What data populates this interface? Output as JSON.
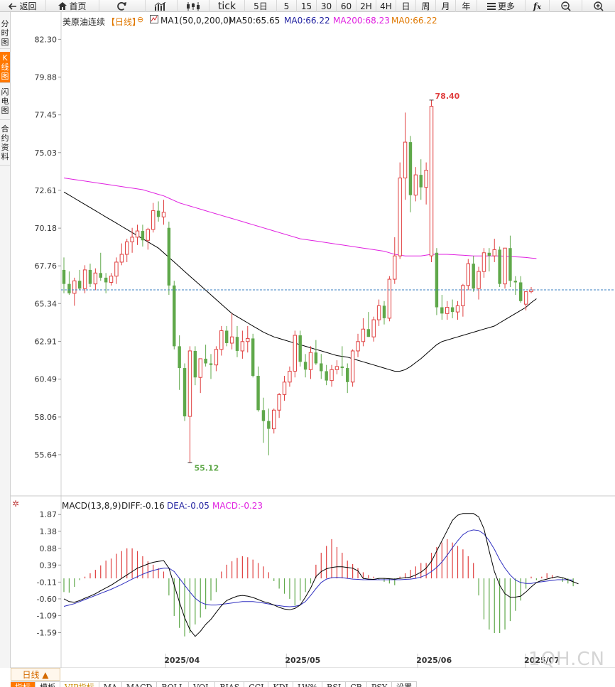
{
  "toolbar": {
    "back_label": "返回",
    "home_label": "首页",
    "tick_label": "tick",
    "periods": [
      "5日",
      "5",
      "15",
      "30",
      "60",
      "2H",
      "4H",
      "日",
      "周",
      "月",
      "年"
    ],
    "more_label": "更多"
  },
  "sidetabs": [
    {
      "label": "分时图",
      "active": false
    },
    {
      "label": "K线图",
      "active": true
    },
    {
      "label": "闪电图",
      "active": false
    },
    {
      "label": "合约资料",
      "active": false
    }
  ],
  "info": {
    "symbol": "美原油连续",
    "period": "【日线】",
    "ma_params": "MA1(50,0,200,0)",
    "ma50": "MA50:65.65",
    "ma0a": "MA0:66.22",
    "ma200": "MA200:68.23",
    "ma0b": "MA0:66.22"
  },
  "macd_info": {
    "name": "MACD(13,8,9)",
    "diff": "DIFF:-0.16",
    "dea": "DEA:-0.05",
    "macd": "MACD:-0.23"
  },
  "price_axis": [
    "82.30",
    "79.88",
    "77.45",
    "75.03",
    "72.61",
    "70.18",
    "67.76",
    "65.34",
    "62.91",
    "60.49",
    "58.06",
    "55.64"
  ],
  "macd_axis": [
    "1.87",
    "1.38",
    "0.88",
    "0.39",
    "-0.11",
    "-0.60",
    "-1.09",
    "-1.59"
  ],
  "date_labels": [
    "2025/04",
    "2025/05",
    "2025/06",
    "2025/07"
  ],
  "annotations": {
    "high": "78.40",
    "low": "55.12"
  },
  "colors": {
    "up": "#e04040",
    "down": "#5fa84a",
    "ma50": "#000000",
    "ma200": "#e020e0",
    "diff": "#000000",
    "dea": "#3030c0",
    "current": "#3a7fc0",
    "accent": "#ff7800"
  },
  "bottom": {
    "period_toggle": "日线 ▲",
    "tabs": [
      {
        "label": "指标",
        "active": true
      },
      {
        "label": "模板",
        "active": false
      },
      {
        "label": "VIP指标",
        "vip": true
      },
      {
        "label": "MA"
      },
      {
        "label": "MACD"
      },
      {
        "label": "BOLL"
      },
      {
        "label": "VOL"
      },
      {
        "label": "BIAS"
      },
      {
        "label": "CCI"
      },
      {
        "label": "KDJ"
      },
      {
        "label": "LW%"
      },
      {
        "label": "RSI"
      },
      {
        "label": "CR"
      },
      {
        "label": "PSY"
      },
      {
        "label": "设置"
      }
    ]
  },
  "watermark": "1QH.CN",
  "chart_data": {
    "type": "candlestick",
    "price_ylim": [
      54.5,
      83.0
    ],
    "current_price": 66.22,
    "candles": [
      {
        "o": 67.5,
        "h": 68.3,
        "l": 66.0,
        "c": 66.6
      },
      {
        "o": 66.6,
        "h": 67.4,
        "l": 65.9,
        "c": 66.0
      },
      {
        "o": 66.0,
        "h": 67.0,
        "l": 65.2,
        "c": 66.8
      },
      {
        "o": 66.8,
        "h": 67.5,
        "l": 66.2,
        "c": 66.3
      },
      {
        "o": 66.3,
        "h": 67.8,
        "l": 66.0,
        "c": 67.5
      },
      {
        "o": 67.5,
        "h": 67.9,
        "l": 66.4,
        "c": 66.6
      },
      {
        "o": 66.6,
        "h": 67.6,
        "l": 66.2,
        "c": 67.3
      },
      {
        "o": 67.3,
        "h": 68.6,
        "l": 66.8,
        "c": 67.0
      },
      {
        "o": 67.0,
        "h": 67.3,
        "l": 66.0,
        "c": 66.7
      },
      {
        "o": 66.7,
        "h": 67.3,
        "l": 66.5,
        "c": 67.1
      },
      {
        "o": 67.1,
        "h": 68.3,
        "l": 66.6,
        "c": 68.0
      },
      {
        "o": 68.0,
        "h": 69.2,
        "l": 67.8,
        "c": 68.5
      },
      {
        "o": 68.5,
        "h": 69.5,
        "l": 68.0,
        "c": 69.3
      },
      {
        "o": 69.3,
        "h": 70.2,
        "l": 68.6,
        "c": 69.6
      },
      {
        "o": 69.6,
        "h": 70.4,
        "l": 69.1,
        "c": 70.0
      },
      {
        "o": 70.0,
        "h": 70.4,
        "l": 69.0,
        "c": 69.4
      },
      {
        "o": 69.4,
        "h": 70.2,
        "l": 68.8,
        "c": 70.1
      },
      {
        "o": 70.1,
        "h": 71.8,
        "l": 69.9,
        "c": 71.3
      },
      {
        "o": 71.3,
        "h": 71.9,
        "l": 70.6,
        "c": 70.9
      },
      {
        "o": 70.9,
        "h": 72.0,
        "l": 70.4,
        "c": 71.2
      },
      {
        "o": 70.2,
        "h": 70.6,
        "l": 65.9,
        "c": 66.5
      },
      {
        "o": 66.5,
        "h": 66.8,
        "l": 62.4,
        "c": 62.6
      },
      {
        "o": 62.6,
        "h": 63.3,
        "l": 59.8,
        "c": 61.2
      },
      {
        "o": 61.2,
        "h": 61.5,
        "l": 57.8,
        "c": 58.1
      },
      {
        "o": 58.1,
        "h": 62.6,
        "l": 55.12,
        "c": 62.3
      },
      {
        "o": 62.3,
        "h": 62.6,
        "l": 60.1,
        "c": 60.6
      },
      {
        "o": 60.6,
        "h": 61.8,
        "l": 59.6,
        "c": 61.8
      },
      {
        "o": 61.8,
        "h": 62.7,
        "l": 61.3,
        "c": 61.5
      },
      {
        "o": 61.5,
        "h": 62.1,
        "l": 60.5,
        "c": 61.4
      },
      {
        "o": 61.4,
        "h": 62.6,
        "l": 61.0,
        "c": 62.4
      },
      {
        "o": 62.4,
        "h": 63.9,
        "l": 62.0,
        "c": 63.6
      },
      {
        "o": 63.6,
        "h": 63.9,
        "l": 62.6,
        "c": 62.8
      },
      {
        "o": 62.8,
        "h": 64.7,
        "l": 62.4,
        "c": 63.2
      },
      {
        "o": 63.2,
        "h": 63.9,
        "l": 61.9,
        "c": 62.3
      },
      {
        "o": 62.3,
        "h": 63.6,
        "l": 61.8,
        "c": 62.9
      },
      {
        "o": 62.9,
        "h": 63.9,
        "l": 62.2,
        "c": 63.1
      },
      {
        "o": 63.1,
        "h": 63.4,
        "l": 60.6,
        "c": 60.7
      },
      {
        "o": 60.7,
        "h": 61.3,
        "l": 58.4,
        "c": 58.5
      },
      {
        "o": 58.5,
        "h": 59.3,
        "l": 56.4,
        "c": 57.8
      },
      {
        "o": 57.8,
        "h": 58.6,
        "l": 55.6,
        "c": 57.3
      },
      {
        "o": 57.3,
        "h": 58.6,
        "l": 57.0,
        "c": 58.5
      },
      {
        "o": 58.5,
        "h": 59.6,
        "l": 58.0,
        "c": 59.5
      },
      {
        "o": 59.5,
        "h": 60.7,
        "l": 59.1,
        "c": 60.3
      },
      {
        "o": 60.3,
        "h": 61.3,
        "l": 60.0,
        "c": 61.0
      },
      {
        "o": 61.0,
        "h": 63.6,
        "l": 60.6,
        "c": 63.3
      },
      {
        "o": 63.3,
        "h": 63.6,
        "l": 61.3,
        "c": 61.6
      },
      {
        "o": 61.6,
        "h": 62.1,
        "l": 60.6,
        "c": 61.1
      },
      {
        "o": 61.1,
        "h": 62.6,
        "l": 60.5,
        "c": 62.2
      },
      {
        "o": 62.2,
        "h": 63.0,
        "l": 61.4,
        "c": 61.5
      },
      {
        "o": 61.5,
        "h": 62.1,
        "l": 60.5,
        "c": 61.0
      },
      {
        "o": 61.0,
        "h": 61.4,
        "l": 60.1,
        "c": 60.4
      },
      {
        "o": 60.4,
        "h": 61.4,
        "l": 60.0,
        "c": 61.1
      },
      {
        "o": 61.1,
        "h": 61.7,
        "l": 60.8,
        "c": 61.3
      },
      {
        "o": 61.3,
        "h": 62.6,
        "l": 60.7,
        "c": 61.2
      },
      {
        "o": 61.2,
        "h": 61.5,
        "l": 59.6,
        "c": 60.3
      },
      {
        "o": 60.3,
        "h": 62.4,
        "l": 60.0,
        "c": 62.3
      },
      {
        "o": 62.3,
        "h": 63.4,
        "l": 61.9,
        "c": 62.9
      },
      {
        "o": 62.9,
        "h": 64.4,
        "l": 62.6,
        "c": 63.7
      },
      {
        "o": 63.7,
        "h": 64.8,
        "l": 63.2,
        "c": 63.2
      },
      {
        "o": 63.2,
        "h": 64.5,
        "l": 62.9,
        "c": 64.3
      },
      {
        "o": 64.3,
        "h": 65.6,
        "l": 63.9,
        "c": 65.2
      },
      {
        "o": 65.2,
        "h": 65.5,
        "l": 64.0,
        "c": 64.4
      },
      {
        "o": 64.4,
        "h": 67.1,
        "l": 64.2,
        "c": 66.9
      },
      {
        "o": 66.9,
        "h": 69.6,
        "l": 66.6,
        "c": 68.4
      },
      {
        "o": 68.4,
        "h": 74.4,
        "l": 68.2,
        "c": 73.4
      },
      {
        "o": 73.4,
        "h": 77.6,
        "l": 72.0,
        "c": 75.7
      },
      {
        "o": 75.7,
        "h": 76.1,
        "l": 71.2,
        "c": 72.3
      },
      {
        "o": 72.3,
        "h": 74.1,
        "l": 71.9,
        "c": 73.6
      },
      {
        "o": 73.6,
        "h": 74.6,
        "l": 72.0,
        "c": 72.8
      },
      {
        "o": 72.8,
        "h": 74.4,
        "l": 71.7,
        "c": 73.9
      },
      {
        "o": 68.4,
        "h": 78.4,
        "l": 68.0,
        "c": 78.0
      },
      {
        "o": 68.6,
        "h": 68.9,
        "l": 64.6,
        "c": 65.1
      },
      {
        "o": 65.1,
        "h": 65.9,
        "l": 64.3,
        "c": 64.7
      },
      {
        "o": 64.7,
        "h": 65.5,
        "l": 64.3,
        "c": 65.1
      },
      {
        "o": 65.1,
        "h": 65.6,
        "l": 64.4,
        "c": 64.8
      },
      {
        "o": 64.8,
        "h": 65.5,
        "l": 64.3,
        "c": 65.2
      },
      {
        "o": 65.2,
        "h": 66.6,
        "l": 64.5,
        "c": 66.5
      },
      {
        "o": 66.5,
        "h": 68.2,
        "l": 66.2,
        "c": 67.9
      },
      {
        "o": 67.9,
        "h": 68.4,
        "l": 66.1,
        "c": 66.3
      },
      {
        "o": 66.3,
        "h": 67.7,
        "l": 65.6,
        "c": 67.4
      },
      {
        "o": 67.4,
        "h": 68.9,
        "l": 67.0,
        "c": 68.6
      },
      {
        "o": 68.6,
        "h": 68.9,
        "l": 67.4,
        "c": 68.4
      },
      {
        "o": 68.4,
        "h": 69.5,
        "l": 68.0,
        "c": 68.8
      },
      {
        "o": 68.8,
        "h": 69.0,
        "l": 66.4,
        "c": 66.6
      },
      {
        "o": 66.6,
        "h": 68.9,
        "l": 66.3,
        "c": 68.9
      },
      {
        "o": 68.9,
        "h": 69.7,
        "l": 66.4,
        "c": 66.8
      },
      {
        "o": 66.8,
        "h": 67.1,
        "l": 65.9,
        "c": 66.7
      },
      {
        "o": 66.7,
        "h": 67.1,
        "l": 65.4,
        "c": 65.5
      },
      {
        "o": 65.3,
        "h": 66.1,
        "l": 64.9,
        "c": 66.1
      },
      {
        "o": 66.1,
        "h": 66.4,
        "l": 66.0,
        "c": 66.22
      }
    ],
    "ma50": [
      72.5,
      72.3,
      72.1,
      71.9,
      71.7,
      71.5,
      71.3,
      71.1,
      70.9,
      70.7,
      70.5,
      70.3,
      70.1,
      69.9,
      69.7,
      69.5,
      69.3,
      69.1,
      68.9,
      68.6,
      68.3,
      68.0,
      67.7,
      67.4,
      67.1,
      66.8,
      66.5,
      66.2,
      65.9,
      65.6,
      65.3,
      65.0,
      64.7,
      64.5,
      64.3,
      64.1,
      63.9,
      63.7,
      63.5,
      63.35,
      63.2,
      63.1,
      63.0,
      62.9,
      62.8,
      62.7,
      62.6,
      62.5,
      62.4,
      62.3,
      62.2,
      62.1,
      62.0,
      61.95,
      61.9,
      61.8,
      61.7,
      61.6,
      61.5,
      61.4,
      61.3,
      61.2,
      61.1,
      61.0,
      61.0,
      61.1,
      61.3,
      61.55,
      61.8,
      62.1,
      62.4,
      62.7,
      62.9,
      63.0,
      63.1,
      63.2,
      63.3,
      63.4,
      63.5,
      63.6,
      63.7,
      63.8,
      63.9,
      64.1,
      64.3,
      64.5,
      64.7,
      64.9,
      65.1,
      65.4,
      65.65
    ],
    "ma200": [
      73.4,
      73.35,
      73.3,
      73.25,
      73.2,
      73.15,
      73.1,
      73.05,
      73.0,
      72.95,
      72.9,
      72.85,
      72.8,
      72.75,
      72.7,
      72.65,
      72.55,
      72.45,
      72.35,
      72.25,
      72.1,
      71.95,
      71.8,
      71.7,
      71.6,
      71.5,
      71.4,
      71.3,
      71.2,
      71.1,
      71.0,
      70.9,
      70.8,
      70.7,
      70.6,
      70.5,
      70.4,
      70.3,
      70.2,
      70.1,
      70.0,
      69.9,
      69.8,
      69.7,
      69.6,
      69.5,
      69.45,
      69.4,
      69.35,
      69.3,
      69.25,
      69.2,
      69.15,
      69.1,
      69.05,
      69.0,
      68.95,
      68.9,
      68.85,
      68.8,
      68.75,
      68.7,
      68.6,
      68.5,
      68.45,
      68.4,
      68.4,
      68.4,
      68.4,
      68.45,
      68.5,
      68.5,
      68.5,
      68.5,
      68.48,
      68.46,
      68.44,
      68.42,
      68.4,
      68.4,
      68.4,
      68.4,
      68.4,
      68.4,
      68.38,
      68.36,
      68.34,
      68.32,
      68.3,
      68.26,
      68.23
    ],
    "macd_ylim": [
      -2.1,
      2.0
    ],
    "macd_hist": [
      -0.4,
      -0.42,
      -0.25,
      -0.05,
      0.05,
      0.15,
      0.25,
      0.38,
      0.52,
      0.58,
      0.72,
      0.8,
      0.88,
      0.88,
      0.8,
      0.65,
      0.5,
      0.4,
      0.3,
      0.2,
      -0.5,
      -1.1,
      -1.45,
      -1.7,
      -1.6,
      -1.35,
      -1.15,
      -0.9,
      -0.65,
      -0.4,
      0.2,
      0.4,
      0.5,
      0.6,
      0.65,
      0.62,
      0.55,
      0.45,
      0.35,
      0.18,
      -0.08,
      -0.3,
      -0.45,
      -0.6,
      -0.8,
      -0.65,
      -0.4,
      -0.15,
      0.4,
      0.75,
      0.95,
      1.15,
      0.92,
      0.75,
      0.52,
      0.42,
      0.3,
      0.18,
      0.1,
      0.05,
      -0.05,
      -0.1,
      -0.15,
      -0.2,
      0.05,
      0.15,
      0.25,
      0.35,
      0.45,
      0.45,
      0.75,
      0.92,
      1.05,
      1.15,
      1.05,
      0.95,
      0.85,
      0.65,
      0.45,
      -0.5,
      -1.2,
      -1.5,
      -1.6,
      -1.6,
      -1.5,
      -1.25,
      -0.95,
      -0.65,
      -0.3,
      0.05,
      -0.05,
      0.05,
      0.15,
      0.1,
      0.0,
      -0.1,
      -0.15,
      -0.23
    ],
    "diff": [
      -0.6,
      -0.68,
      -0.7,
      -0.65,
      -0.58,
      -0.52,
      -0.45,
      -0.36,
      -0.28,
      -0.2,
      -0.1,
      0.0,
      0.1,
      0.2,
      0.3,
      0.36,
      0.42,
      0.47,
      0.5,
      0.52,
      0.3,
      -0.2,
      -0.7,
      -1.15,
      -1.5,
      -1.7,
      -1.55,
      -1.35,
      -1.2,
      -1.0,
      -0.8,
      -0.65,
      -0.58,
      -0.52,
      -0.5,
      -0.52,
      -0.56,
      -0.62,
      -0.68,
      -0.72,
      -0.78,
      -0.85,
      -0.9,
      -0.92,
      -0.88,
      -0.78,
      -0.55,
      -0.28,
      0.05,
      0.2,
      0.28,
      0.32,
      0.34,
      0.34,
      0.32,
      0.3,
      0.22,
      0.0,
      -0.02,
      -0.03,
      0.0,
      0.0,
      -0.01,
      -0.02,
      0.0,
      0.02,
      0.04,
      0.1,
      0.18,
      0.3,
      0.5,
      0.8,
      1.1,
      1.4,
      1.7,
      1.85,
      1.9,
      1.9,
      1.9,
      1.8,
      1.45,
      0.8,
      0.2,
      -0.2,
      -0.45,
      -0.55,
      -0.55,
      -0.52,
      -0.4,
      -0.25,
      -0.12,
      -0.06,
      -0.02,
      0.02,
      0.05,
      0.02,
      -0.04,
      -0.1,
      -0.16
    ],
    "dea": [
      -0.82,
      -0.78,
      -0.74,
      -0.68,
      -0.62,
      -0.56,
      -0.5,
      -0.44,
      -0.38,
      -0.32,
      -0.25,
      -0.18,
      -0.1,
      -0.02,
      0.05,
      0.12,
      0.18,
      0.23,
      0.27,
      0.3,
      0.3,
      0.2,
      0.0,
      -0.2,
      -0.4,
      -0.58,
      -0.7,
      -0.76,
      -0.78,
      -0.78,
      -0.76,
      -0.74,
      -0.72,
      -0.7,
      -0.68,
      -0.68,
      -0.68,
      -0.7,
      -0.72,
      -0.75,
      -0.78,
      -0.8,
      -0.82,
      -0.83,
      -0.82,
      -0.78,
      -0.68,
      -0.5,
      -0.3,
      -0.12,
      -0.02,
      0.02,
      0.03,
      0.02,
      0.0,
      -0.02,
      -0.03,
      -0.04,
      -0.04,
      -0.04,
      -0.04,
      -0.04,
      -0.04,
      -0.04,
      -0.04,
      -0.03,
      -0.02,
      0.0,
      0.04,
      0.1,
      0.2,
      0.32,
      0.48,
      0.68,
      0.9,
      1.1,
      1.28,
      1.38,
      1.42,
      1.4,
      1.3,
      1.1,
      0.85,
      0.55,
      0.3,
      0.1,
      -0.05,
      -0.12,
      -0.15,
      -0.15,
      -0.12,
      -0.1,
      -0.08,
      -0.06,
      -0.04,
      -0.04,
      -0.04,
      -0.05
    ]
  }
}
